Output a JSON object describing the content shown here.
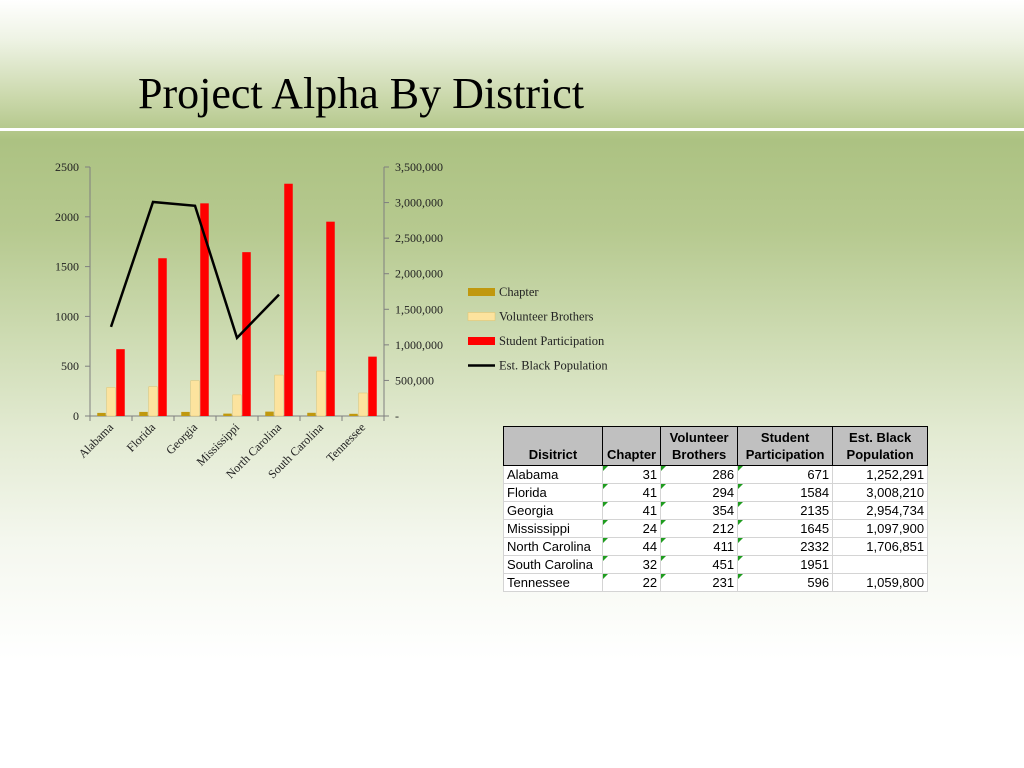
{
  "slide": {
    "title": "Project Alpha By District"
  },
  "chart_data": {
    "type": "bar",
    "categories": [
      "Alabama",
      "Florida",
      "Georgia",
      "Mississippi",
      "North Carolina",
      "South Carolina",
      "Tennessee"
    ],
    "series": [
      {
        "name": "Chapter",
        "type": "bar",
        "axis": "left",
        "color": "#c0980e",
        "values": [
          31,
          41,
          41,
          24,
          44,
          32,
          22
        ]
      },
      {
        "name": "Volunteer Brothers",
        "type": "bar",
        "axis": "left",
        "color": "#fce39e",
        "values": [
          286,
          294,
          354,
          212,
          411,
          451,
          231
        ]
      },
      {
        "name": "Student Participation",
        "type": "bar",
        "axis": "left",
        "color": "#ff0000",
        "values": [
          671,
          1584,
          2135,
          1645,
          2332,
          1951,
          596
        ]
      },
      {
        "name": "Est. Black Population",
        "type": "line",
        "axis": "right",
        "color": "#000000",
        "values": [
          1252291,
          3008210,
          2954734,
          1097900,
          1706851,
          null,
          1059800
        ]
      }
    ],
    "y_left": {
      "range": [
        0,
        2500
      ],
      "ticks": [
        "2500",
        "2000",
        "1500",
        "1000",
        "500",
        "0"
      ]
    },
    "y_right": {
      "range": [
        0,
        3500000
      ],
      "ticks": [
        "3,500,000",
        "3,000,000",
        "2,500,000",
        "2,000,000",
        "1,500,000",
        "1,000,000",
        "500,000",
        "-"
      ]
    },
    "legend": {
      "placement": "right"
    },
    "grid": false
  },
  "table": {
    "headers": [
      "Disitrict",
      "Chapter",
      "Volunteer Brothers",
      "Student Participation",
      "Est. Black Population"
    ],
    "rows": [
      [
        "Alabama",
        "31",
        "286",
        "671",
        "1,252,291"
      ],
      [
        "Florida",
        "41",
        "294",
        "1584",
        "3,008,210"
      ],
      [
        "Georgia",
        "41",
        "354",
        "2135",
        "2,954,734"
      ],
      [
        "Mississippi",
        "24",
        "212",
        "1645",
        "1,097,900"
      ],
      [
        "North Carolina",
        "44",
        "411",
        "2332",
        "1,706,851"
      ],
      [
        "South Carolina",
        "32",
        "451",
        "1951",
        ""
      ],
      [
        "Tennessee",
        "22",
        "231",
        "596",
        "1,059,800"
      ]
    ]
  }
}
